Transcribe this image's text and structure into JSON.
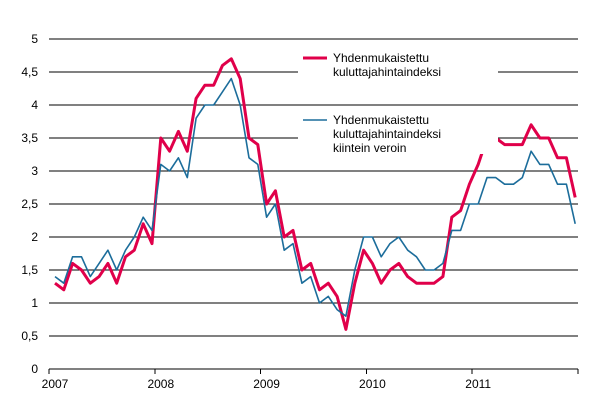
{
  "chart_data": {
    "type": "line",
    "ylim": [
      0,
      5
    ],
    "y_ticks": [
      "0",
      "0,5",
      "1",
      "1,5",
      "2",
      "2,5",
      "3",
      "3,5",
      "4",
      "4,5",
      "5"
    ],
    "x_tick_labels": [
      "2007",
      "2008",
      "2009",
      "2010",
      "2011"
    ],
    "grid": true,
    "legend_position": "top-right",
    "x": [
      "2007-01",
      "2007-02",
      "2007-03",
      "2007-04",
      "2007-05",
      "2007-06",
      "2007-07",
      "2007-08",
      "2007-09",
      "2007-10",
      "2007-11",
      "2007-12",
      "2008-01",
      "2008-02",
      "2008-03",
      "2008-04",
      "2008-05",
      "2008-06",
      "2008-07",
      "2008-08",
      "2008-09",
      "2008-10",
      "2008-11",
      "2008-12",
      "2009-01",
      "2009-02",
      "2009-03",
      "2009-04",
      "2009-05",
      "2009-06",
      "2009-07",
      "2009-08",
      "2009-09",
      "2009-10",
      "2009-11",
      "2009-12",
      "2010-01",
      "2010-02",
      "2010-03",
      "2010-04",
      "2010-05",
      "2010-06",
      "2010-07",
      "2010-08",
      "2010-09",
      "2010-10",
      "2010-11",
      "2010-12",
      "2011-01",
      "2011-02",
      "2011-03",
      "2011-04",
      "2011-05",
      "2011-06",
      "2011-07",
      "2011-08",
      "2011-09",
      "2011-10",
      "2011-11",
      "2011-12"
    ],
    "series": [
      {
        "name_lines": [
          "Yhdenmukaistettu",
          "kuluttajahintaindeksi"
        ],
        "color": "#e0004a",
        "values": [
          1.3,
          1.2,
          1.6,
          1.5,
          1.3,
          1.4,
          1.6,
          1.3,
          1.7,
          1.8,
          2.2,
          1.9,
          3.5,
          3.3,
          3.6,
          3.3,
          4.1,
          4.3,
          4.3,
          4.6,
          4.7,
          4.4,
          3.5,
          3.4,
          2.5,
          2.7,
          2.0,
          2.1,
          1.5,
          1.6,
          1.2,
          1.3,
          1.1,
          0.6,
          1.3,
          1.8,
          1.6,
          1.3,
          1.5,
          1.6,
          1.4,
          1.3,
          1.3,
          1.3,
          1.4,
          2.3,
          2.4,
          2.8,
          3.1,
          3.5,
          3.5,
          3.4,
          3.4,
          3.4,
          3.7,
          3.5,
          3.5,
          3.2,
          3.2,
          2.6
        ]
      },
      {
        "name_lines": [
          "Yhdenmukaistettu",
          "kuluttajahintaindeksi",
          "kiintein veroin"
        ],
        "color": "#1c6d9b",
        "values": [
          1.4,
          1.3,
          1.7,
          1.7,
          1.4,
          1.6,
          1.8,
          1.5,
          1.8,
          2.0,
          2.3,
          2.1,
          3.1,
          3.0,
          3.2,
          2.9,
          3.8,
          4.0,
          4.0,
          4.2,
          4.4,
          4.0,
          3.2,
          3.1,
          2.3,
          2.5,
          1.8,
          1.9,
          1.3,
          1.4,
          1.0,
          1.1,
          0.9,
          0.8,
          1.5,
          2.0,
          2.0,
          1.7,
          1.9,
          2.0,
          1.8,
          1.7,
          1.5,
          1.5,
          1.6,
          2.1,
          2.1,
          2.5,
          2.5,
          2.9,
          2.9,
          2.8,
          2.8,
          2.9,
          3.3,
          3.1,
          3.1,
          2.8,
          2.8,
          2.2
        ]
      }
    ]
  }
}
